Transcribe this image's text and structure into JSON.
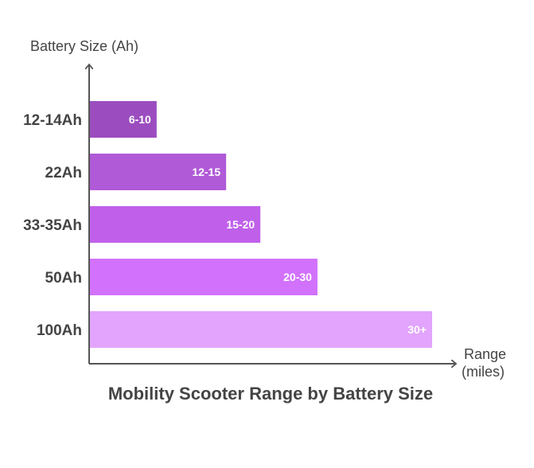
{
  "chart_data": {
    "type": "bar",
    "orientation": "horizontal",
    "title": "Mobility Scooter Range by Battery Size",
    "ylabel": "Battery Size (Ah)",
    "xlabel_line1": "Range",
    "xlabel_line2": "(miles)",
    "categories": [
      "12-14Ah",
      "22Ah",
      "33-35Ah",
      "50Ah",
      "100Ah"
    ],
    "value_labels": [
      "6-10",
      "12-15",
      "15-20",
      "20-30",
      "30+"
    ],
    "relative_length_percent": [
      19.5,
      39.8,
      49.8,
      66.5,
      100
    ],
    "colors": [
      "#9b4dbf",
      "#b05ad8",
      "#c060ea",
      "#d272fc",
      "#e2a4fc"
    ],
    "axis_color": "#555555",
    "grid": false,
    "legend": "none"
  }
}
